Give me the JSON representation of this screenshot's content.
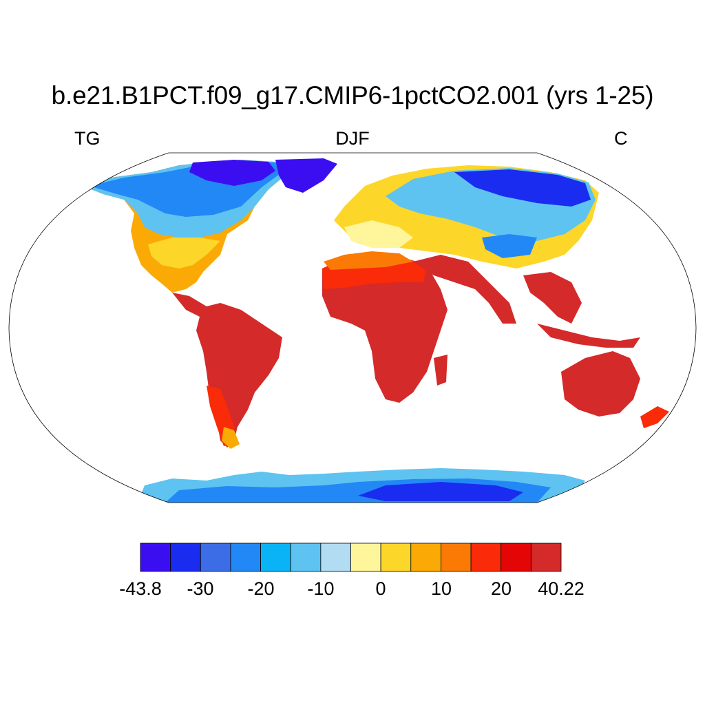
{
  "map": {
    "title": "b.e21.B1PCT.f09_g17.CMIP6-1pctCO2.001 (yrs 1-25)",
    "left_label": "TG",
    "center_label": "DJF",
    "right_label": "C"
  },
  "colorbar": {
    "colors": [
      "#3b0ef2",
      "#1a2cf0",
      "#3c6ce6",
      "#2288f5",
      "#0ab3f5",
      "#5ec3f0",
      "#b2dcf2",
      "#fff59a",
      "#fdd62a",
      "#fbaa05",
      "#fb7a05",
      "#fa2b08",
      "#e40606",
      "#d42a2a"
    ],
    "tick_labels": [
      "-43.8",
      "-30",
      "-20",
      "-10",
      "0",
      "10",
      "20",
      "40.22"
    ]
  },
  "colors": {
    "land_hot": "#d42a2a",
    "land_cold": "#1a2cf0",
    "ocean": "#ffffff",
    "coastline": "#000000"
  }
}
